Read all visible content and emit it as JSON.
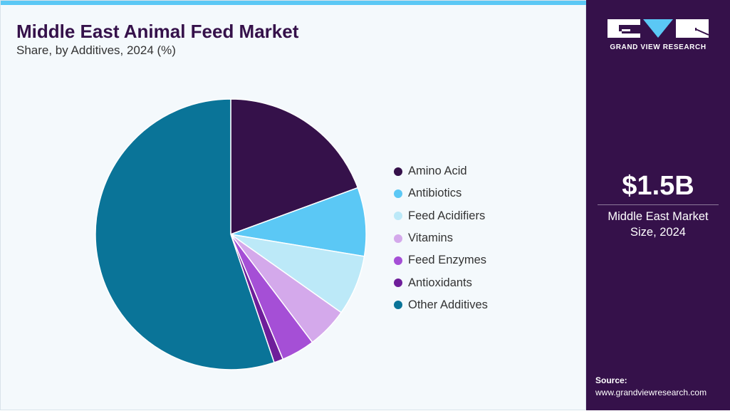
{
  "header": {
    "title": "Middle East Animal Feed Market",
    "subtitle": "Share, by Additives, 2024 (%)"
  },
  "brand": {
    "name": "GRAND VIEW RESEARCH"
  },
  "stat": {
    "value": "$1.5B",
    "label_line1": "Middle East Market",
    "label_line2": "Size, 2024"
  },
  "source": {
    "label": "Source:",
    "url": "www.grandviewresearch.com"
  },
  "colors": {
    "accent": "#5bc8f5",
    "panel": "#35114a",
    "background": "#f4f9fc"
  },
  "chart_data": {
    "type": "pie",
    "title": "Middle East Animal Feed Market",
    "subtitle": "Share, by Additives, 2024 (%)",
    "legend_position": "right",
    "categories": [
      "Amino Acid",
      "Antibiotics",
      "Feed Acidifiers",
      "Vitamins",
      "Feed Enzymes",
      "Antioxidants",
      "Other Additives"
    ],
    "values": [
      19.4,
      8.2,
      7.2,
      4.9,
      4.0,
      1.1,
      55.2
    ],
    "colors": [
      "#35114a",
      "#5bc8f5",
      "#bce9f8",
      "#d4a9eb",
      "#a54fd6",
      "#6e1e9a",
      "#0a7498"
    ]
  }
}
